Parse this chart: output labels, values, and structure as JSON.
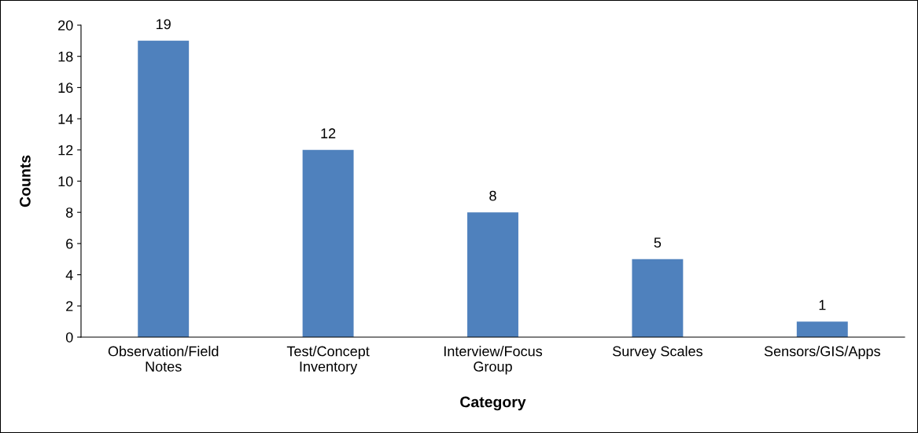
{
  "chart_data": {
    "type": "bar",
    "xlabel": "Category",
    "ylabel": "Counts",
    "categories": [
      "Observation/Field\nNotes",
      "Test/Concept\nInventory",
      "Interview/Focus\nGroup",
      "Survey Scales",
      "Sensors/GIS/Apps"
    ],
    "values": [
      19,
      12,
      8,
      5,
      1
    ],
    "color": "#4f81bd",
    "ylim": [
      0,
      20
    ],
    "yticks": [
      0,
      2,
      4,
      6,
      8,
      10,
      12,
      14,
      16,
      18,
      20
    ],
    "grid": false,
    "data_labels": true
  }
}
